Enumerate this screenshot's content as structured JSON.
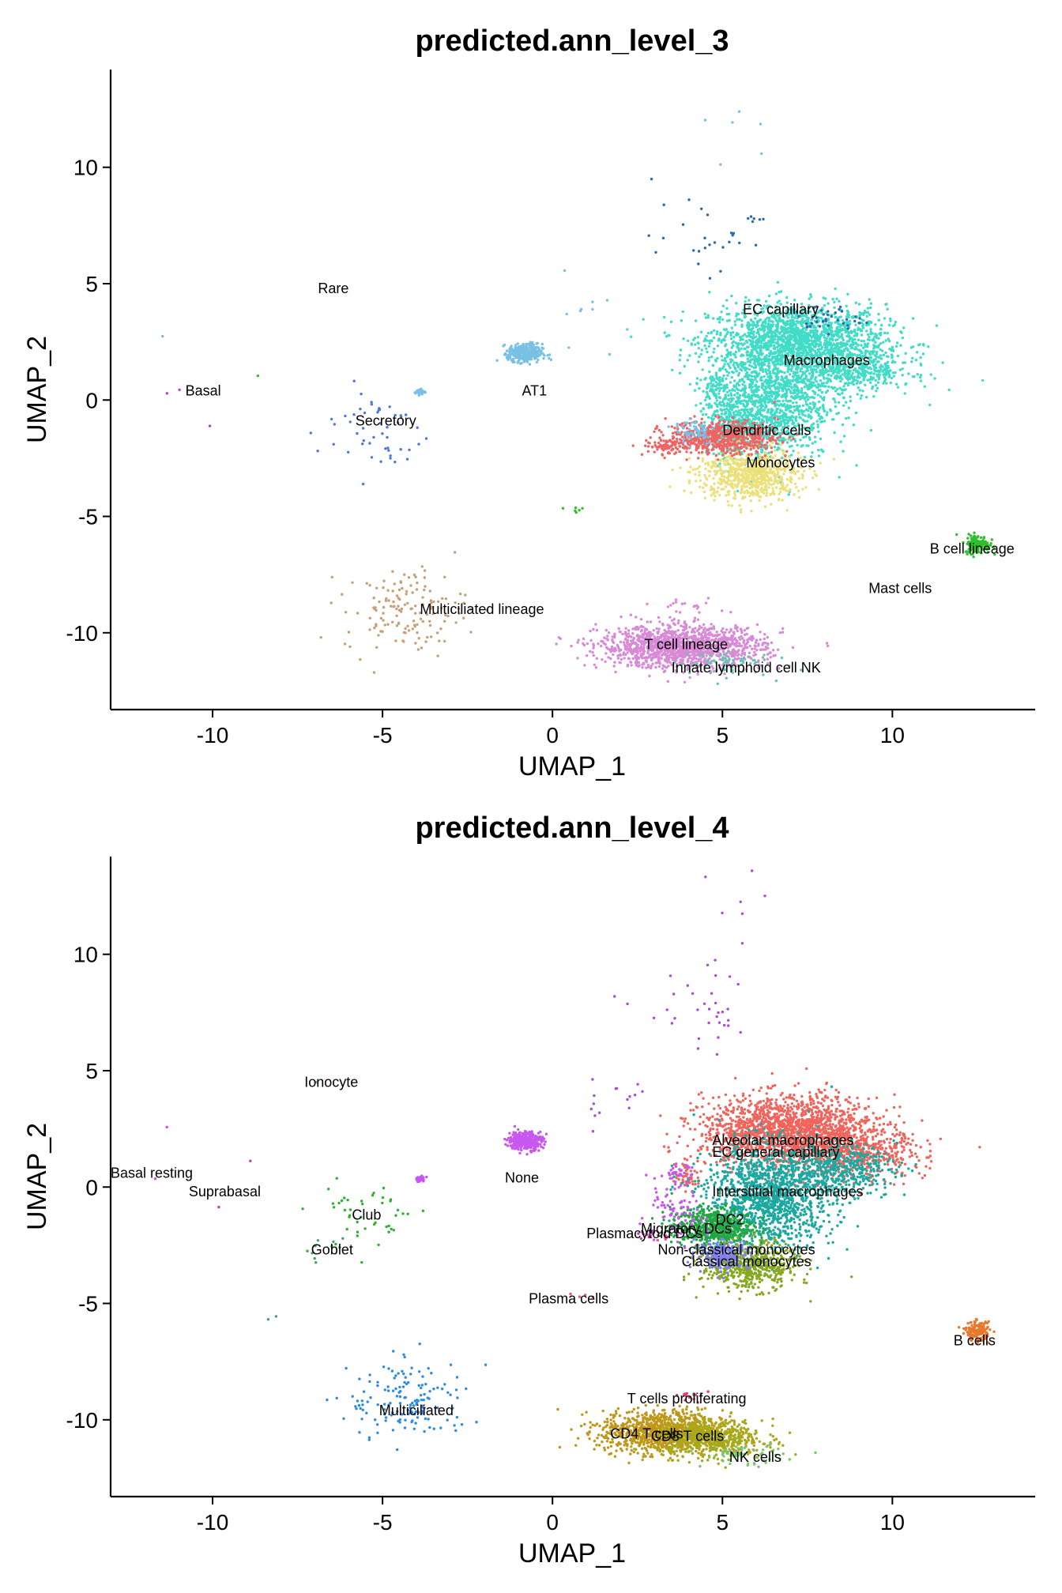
{
  "chart_data": [
    {
      "type": "scatter",
      "title": "predicted.ann_level_3",
      "xlabel": "UMAP_1",
      "ylabel": "UMAP_2",
      "xlim": [
        -13,
        14.2
      ],
      "ylim": [
        -13.3,
        14.2
      ],
      "xticks": [
        -10,
        -5,
        0,
        5,
        10
      ],
      "yticks": [
        -10,
        -5,
        0,
        5,
        10
      ],
      "grid": false,
      "legend": "none",
      "clusters": [
        {
          "label": "EC capillary",
          "color": "#2a6aa8",
          "label_x": 5.6,
          "label_y": 3.7,
          "blobs": [
            {
              "cx": 8.0,
              "cy": 3.5,
              "sx": 0.5,
              "sy": 0.3,
              "n": 40
            },
            {
              "cx": 4.5,
              "cy": 7.0,
              "sx": 0.8,
              "sy": 0.7,
              "n": 25
            },
            {
              "cx": 6.0,
              "cy": 7.7,
              "sx": 0.15,
              "sy": 0.1,
              "n": 6
            }
          ]
        },
        {
          "label": "Macrophages",
          "color": "#40dcc8",
          "label_x": 6.8,
          "label_y": 1.5,
          "blobs": [
            {
              "cx": 7.2,
              "cy": 2.6,
              "sx": 1.3,
              "sy": 0.75,
              "n": 1600
            },
            {
              "cx": 6.4,
              "cy": 0.0,
              "sx": 0.9,
              "sy": 1.3,
              "n": 1300
            },
            {
              "cx": 8.8,
              "cy": 1.3,
              "sx": 0.9,
              "sy": 0.5,
              "n": 500
            },
            {
              "cx": 5.5,
              "cy": -1.2,
              "sx": 0.5,
              "sy": 0.6,
              "n": 300
            },
            {
              "cx": 4.8,
              "cy": 0.5,
              "sx": 0.2,
              "sy": 0.3,
              "n": 60
            }
          ]
        },
        {
          "label": "Dendritic cells",
          "color": "#ee6464",
          "label_x": 5.0,
          "label_y": -1.5,
          "blobs": [
            {
              "cx": 5.0,
              "cy": -1.6,
              "sx": 0.8,
              "sy": 0.35,
              "n": 600
            },
            {
              "cx": 3.4,
              "cy": -2.0,
              "sx": 0.35,
              "sy": 0.2,
              "n": 80
            }
          ]
        },
        {
          "label": "Monocytes",
          "color": "#ece078",
          "label_x": 5.7,
          "label_y": -2.9,
          "blobs": [
            {
              "cx": 5.8,
              "cy": -3.2,
              "sx": 0.75,
              "sy": 0.55,
              "n": 700
            }
          ]
        },
        {
          "label": "AT1",
          "color": "#78c0e4",
          "label_x": -0.9,
          "label_y": 0.2,
          "blobs": [
            {
              "cx": -0.8,
              "cy": 2.0,
              "sx": 0.25,
              "sy": 0.2,
              "n": 320
            },
            {
              "cx": -3.9,
              "cy": 0.35,
              "sx": 0.08,
              "sy": 0.06,
              "n": 40
            },
            {
              "cx": 4.2,
              "cy": -1.3,
              "sx": 0.3,
              "sy": 0.3,
              "n": 60
            },
            {
              "cx": 5.5,
              "cy": 11.5,
              "sx": 0.5,
              "sy": 1.0,
              "n": 6
            },
            {
              "cx": 1.5,
              "cy": 4.0,
              "sx": 0.6,
              "sy": 0.8,
              "n": 10
            }
          ]
        },
        {
          "label": "Secretory",
          "color": "#4f78dc",
          "label_x": -5.8,
          "label_y": -1.1,
          "blobs": [
            {
              "cx": -5.3,
              "cy": -1.3,
              "sx": 0.8,
              "sy": 1.0,
              "n": 50
            }
          ]
        },
        {
          "label": "Basal",
          "color": "#b33fd0",
          "label_x": -10.8,
          "label_y": 0.2,
          "blobs": [
            {
              "cx": -11.5,
              "cy": 0.5,
              "sx": 0.3,
              "sy": 0.2,
              "n": 2
            },
            {
              "cx": -10.0,
              "cy": -0.9,
              "sx": 0.1,
              "sy": 0.1,
              "n": 1
            }
          ]
        },
        {
          "label": "Rare",
          "color": "#8ab4ce",
          "label_x": -6.9,
          "label_y": 4.6,
          "blobs": [
            {
              "cx": -11.3,
              "cy": 2.6,
              "sx": 0.1,
              "sy": 0.1,
              "n": 1
            }
          ]
        },
        {
          "label": "Multiciliated lineage",
          "color": "#c8a078",
          "label_x": -3.9,
          "label_y": -9.2,
          "blobs": [
            {
              "cx": -4.3,
              "cy": -9.0,
              "sx": 0.9,
              "sy": 0.9,
              "n": 150
            }
          ]
        },
        {
          "label": "T cell lineage",
          "color": "#d88ad6",
          "label_x": 2.7,
          "label_y": -10.7,
          "blobs": [
            {
              "cx": 3.8,
              "cy": -10.6,
              "sx": 1.2,
              "sy": 0.45,
              "n": 1400
            },
            {
              "cx": 4.0,
              "cy": -9.0,
              "sx": 0.4,
              "sy": 0.2,
              "n": 20
            }
          ]
        },
        {
          "label": "Innate lymphoid cell NK",
          "color": "#5ec8b0",
          "label_x": 3.5,
          "label_y": -11.7,
          "blobs": [
            {
              "cx": 5.0,
              "cy": -11.3,
              "sx": 0.7,
              "sy": 0.3,
              "n": 60
            }
          ]
        },
        {
          "label": "B cell lineage",
          "color": "#2cc02c",
          "label_x": 11.1,
          "label_y": -6.6,
          "blobs": [
            {
              "cx": 12.5,
              "cy": -6.2,
              "sx": 0.18,
              "sy": 0.2,
              "n": 150
            },
            {
              "cx": 0.6,
              "cy": -4.7,
              "sx": 0.2,
              "sy": 0.1,
              "n": 6
            },
            {
              "cx": -8.8,
              "cy": 1.1,
              "sx": 0.1,
              "sy": 0.1,
              "n": 1
            }
          ]
        },
        {
          "label": "Mast cells",
          "color": "#e8a040",
          "label_x": 9.3,
          "label_y": -8.3,
          "blobs": []
        }
      ]
    },
    {
      "type": "scatter",
      "title": "predicted.ann_level_4",
      "xlabel": "UMAP_1",
      "ylabel": "UMAP_2",
      "xlim": [
        -13,
        14.2
      ],
      "ylim": [
        -13.3,
        14.2
      ],
      "xticks": [
        -10,
        -5,
        0,
        5,
        10
      ],
      "yticks": [
        -10,
        -5,
        0,
        5,
        10
      ],
      "grid": false,
      "legend": "none",
      "clusters": [
        {
          "label": "Alveolar macrophages",
          "color": "#f0645c",
          "label_x": 4.7,
          "label_y": 1.8,
          "blobs": [
            {
              "cx": 7.0,
              "cy": 2.4,
              "sx": 1.3,
              "sy": 0.75,
              "n": 1800
            },
            {
              "cx": 9.0,
              "cy": 1.4,
              "sx": 1.0,
              "sy": 0.5,
              "n": 400
            },
            {
              "cx": 4.0,
              "cy": 0.5,
              "sx": 0.2,
              "sy": 0.3,
              "n": 60
            }
          ]
        },
        {
          "label": "EC general capillary",
          "color": "#a84cdc",
          "label_x": 4.7,
          "label_y": 1.3,
          "blobs": [
            {
              "cx": 4.5,
              "cy": 7.5,
              "sx": 0.9,
              "sy": 0.9,
              "n": 35
            },
            {
              "cx": 5.8,
              "cy": 12.0,
              "sx": 0.6,
              "sy": 0.8,
              "n": 6
            },
            {
              "cx": 1.8,
              "cy": 3.6,
              "sx": 0.7,
              "sy": 0.6,
              "n": 15
            }
          ]
        },
        {
          "label": "Interstitial macrophages",
          "color": "#1aa8a0",
          "label_x": 4.7,
          "label_y": -0.4,
          "blobs": [
            {
              "cx": 6.4,
              "cy": -0.4,
              "sx": 0.95,
              "sy": 1.1,
              "n": 1400
            },
            {
              "cx": 8.5,
              "cy": 0.8,
              "sx": 0.8,
              "sy": 0.5,
              "n": 400
            }
          ]
        },
        {
          "label": "None",
          "color": "#c856f0",
          "label_x": -1.4,
          "label_y": 0.2,
          "blobs": [
            {
              "cx": -0.8,
              "cy": 2.0,
              "sx": 0.25,
              "sy": 0.2,
              "n": 320
            },
            {
              "cx": -3.9,
              "cy": 0.35,
              "sx": 0.08,
              "sy": 0.06,
              "n": 40
            },
            {
              "cx": 3.5,
              "cy": -1.2,
              "sx": 0.5,
              "sy": 0.6,
              "n": 80
            },
            {
              "cx": 3.7,
              "cy": 0.6,
              "sx": 0.2,
              "sy": 0.2,
              "n": 30
            }
          ]
        },
        {
          "label": "DC2",
          "color": "#20a840",
          "label_x": 4.8,
          "label_y": -1.6,
          "blobs": [
            {
              "cx": 4.7,
              "cy": -1.7,
              "sx": 0.6,
              "sy": 0.4,
              "n": 600
            }
          ]
        },
        {
          "label": "Migratory DCs",
          "color": "#d02cb4",
          "label_x": 2.6,
          "label_y": -2.0,
          "blobs": [
            {
              "cx": 2.8,
              "cy": -2.1,
              "sx": 0.15,
              "sy": 0.1,
              "n": 10
            }
          ]
        },
        {
          "label": "Plasmacytoid DCs",
          "color": "#e05c8c",
          "label_x": 1.0,
          "label_y": -2.2,
          "blobs": [
            {
              "cx": 3.2,
              "cy": -2.2,
              "sx": 0.1,
              "sy": 0.08,
              "n": 6
            }
          ]
        },
        {
          "label": "Non-classical monocytes",
          "color": "#8080f0",
          "label_x": 3.1,
          "label_y": -2.9,
          "blobs": [
            {
              "cx": 5.0,
              "cy": -2.9,
              "sx": 0.4,
              "sy": 0.3,
              "n": 220
            }
          ]
        },
        {
          "label": "Classical monocytes",
          "color": "#86a820",
          "label_x": 3.8,
          "label_y": -3.4,
          "blobs": [
            {
              "cx": 5.8,
              "cy": -3.4,
              "sx": 0.7,
              "sy": 0.5,
              "n": 550
            }
          ]
        },
        {
          "label": "Plasma cells",
          "color": "#e8548c",
          "label_x": -0.7,
          "label_y": -5.0,
          "blobs": [
            {
              "cx": 0.6,
              "cy": -4.7,
              "sx": 0.3,
              "sy": 0.1,
              "n": 4
            }
          ]
        },
        {
          "label": "Ionocyte",
          "color": "#60c0d8",
          "label_x": -7.3,
          "label_y": 4.3,
          "blobs": [
            {
              "cx": -7.0,
              "cy": 4.5,
              "sx": 0.05,
              "sy": 0.05,
              "n": 1
            }
          ]
        },
        {
          "label": "Basal resting",
          "color": "#e040e0",
          "label_x": -13.0,
          "label_y": 0.4,
          "blobs": [
            {
              "cx": -11.4,
              "cy": 2.6,
              "sx": 0.1,
              "sy": 0.1,
              "n": 1
            },
            {
              "cx": -11.8,
              "cy": 0.4,
              "sx": 0.1,
              "sy": 0.1,
              "n": 1
            }
          ]
        },
        {
          "label": "Suprabasal",
          "color": "#c040a0",
          "label_x": -10.7,
          "label_y": -0.4,
          "blobs": [
            {
              "cx": -10.0,
              "cy": -0.9,
              "sx": 0.1,
              "sy": 0.1,
              "n": 1
            },
            {
              "cx": -8.9,
              "cy": 1.0,
              "sx": 0.1,
              "sy": 0.1,
              "n": 1
            }
          ]
        },
        {
          "label": "Club",
          "color": "#30b030",
          "label_x": -5.9,
          "label_y": -1.4,
          "blobs": [
            {
              "cx": -5.5,
              "cy": -1.2,
              "sx": 0.8,
              "sy": 0.9,
              "n": 45
            }
          ]
        },
        {
          "label": "Goblet",
          "color": "#48a068",
          "label_x": -7.1,
          "label_y": -2.9,
          "blobs": [
            {
              "cx": -6.5,
              "cy": -3.0,
              "sx": 0.5,
              "sy": 0.5,
              "n": 8
            },
            {
              "cx": -8.2,
              "cy": -5.5,
              "sx": 0.1,
              "sy": 0.1,
              "n": 2
            }
          ]
        },
        {
          "label": "Multiciliated",
          "color": "#2c8ce4",
          "label_x": -5.1,
          "label_y": -9.8,
          "blobs": [
            {
              "cx": -4.2,
              "cy": -9.2,
              "sx": 0.9,
              "sy": 0.9,
              "n": 150
            }
          ]
        },
        {
          "label": "T cells proliferating",
          "color": "#e03c78",
          "label_x": 2.2,
          "label_y": -9.3,
          "blobs": [
            {
              "cx": 4.0,
              "cy": -9.0,
              "sx": 0.3,
              "sy": 0.15,
              "n": 14
            }
          ]
        },
        {
          "label": "CD4 T cells",
          "color": "#c09618",
          "label_x": 1.7,
          "label_y": -10.8,
          "blobs": [
            {
              "cx": 3.2,
              "cy": -10.5,
              "sx": 0.9,
              "sy": 0.45,
              "n": 900
            }
          ]
        },
        {
          "label": "CD8 T cells",
          "color": "#a8a818",
          "label_x": 2.9,
          "label_y": -10.9,
          "blobs": [
            {
              "cx": 4.6,
              "cy": -10.8,
              "sx": 0.8,
              "sy": 0.4,
              "n": 600
            }
          ]
        },
        {
          "label": "NK cells",
          "color": "#78c868",
          "label_x": 5.2,
          "label_y": -11.8,
          "blobs": [
            {
              "cx": 5.6,
              "cy": -11.5,
              "sx": 0.6,
              "sy": 0.25,
              "n": 60
            }
          ]
        },
        {
          "label": "B cells",
          "color": "#e8782c",
          "label_x": 11.8,
          "label_y": -6.8,
          "blobs": [
            {
              "cx": 12.5,
              "cy": -6.2,
              "sx": 0.18,
              "sy": 0.2,
              "n": 150
            }
          ]
        }
      ]
    }
  ]
}
